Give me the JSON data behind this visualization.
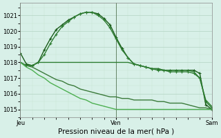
{
  "title": "Pression niveau de la mer( hPa )",
  "bg_color": "#cce8d8",
  "plot_bg_color": "#d8f0e8",
  "grid_color_major": "#b8d8c8",
  "grid_color_minor": "#c8e4d4",
  "ylim": [
    1014.5,
    1021.8
  ],
  "yticks": [
    1015,
    1016,
    1017,
    1018,
    1019,
    1020,
    1021
  ],
  "xtick_labels": [
    "Jeu",
    "Ven",
    "Sam"
  ],
  "xtick_positions": [
    0,
    16,
    32
  ],
  "series": [
    {
      "y": [
        1018.6,
        1017.9,
        1017.8,
        1018.0,
        1018.8,
        1019.5,
        1020.1,
        1020.4,
        1020.7,
        1020.9,
        1021.1,
        1021.2,
        1021.2,
        1021.1,
        1020.8,
        1020.4,
        1019.6,
        1018.9,
        1018.3,
        1017.9,
        1017.8,
        1017.7,
        1017.6,
        1017.6,
        1017.5,
        1017.5,
        1017.5,
        1017.5,
        1017.5,
        1017.5,
        1017.3,
        1015.3,
        1015.0
      ],
      "color": "#1a5c1a",
      "lw": 1.0,
      "marker": "+",
      "ms": 3.5
    },
    {
      "y": [
        1018.0,
        1017.8,
        1017.8,
        1018.0,
        1018.5,
        1019.2,
        1019.8,
        1020.3,
        1020.6,
        1020.9,
        1021.1,
        1021.2,
        1021.2,
        1021.0,
        1020.7,
        1020.2,
        1019.5,
        1018.8,
        1018.3,
        1017.9,
        1017.8,
        1017.7,
        1017.6,
        1017.5,
        1017.5,
        1017.4,
        1017.4,
        1017.4,
        1017.4,
        1017.3,
        1017.0,
        1015.5,
        1015.1
      ],
      "color": "#2e7d32",
      "lw": 1.0,
      "marker": "+",
      "ms": 3.5
    },
    {
      "y": [
        1018.0,
        1017.8,
        1017.8,
        1018.0,
        1018.0,
        1018.0,
        1018.0,
        1018.0,
        1018.0,
        1018.0,
        1018.0,
        1018.0,
        1018.0,
        1018.0,
        1018.0,
        1018.0,
        1018.0,
        1018.0,
        1018.0,
        1017.9,
        1017.8,
        1017.7,
        1017.6,
        1017.6,
        1017.5,
        1017.5,
        1017.5,
        1017.5,
        1017.5,
        1017.4,
        1017.0,
        1015.6,
        1015.2
      ],
      "color": "#2e7d32",
      "lw": 1.0,
      "marker": null,
      "ms": 0
    },
    {
      "y": [
        1018.0,
        1017.8,
        1017.7,
        1017.5,
        1017.3,
        1017.1,
        1016.9,
        1016.8,
        1016.6,
        1016.5,
        1016.3,
        1016.2,
        1016.1,
        1016.0,
        1015.9,
        1015.8,
        1015.8,
        1015.7,
        1015.7,
        1015.6,
        1015.6,
        1015.6,
        1015.6,
        1015.5,
        1015.5,
        1015.4,
        1015.4,
        1015.4,
        1015.3,
        1015.2,
        1015.1,
        1015.1,
        1015.0
      ],
      "color": "#3a7a3a",
      "lw": 1.0,
      "marker": null,
      "ms": 0
    },
    {
      "y": [
        1018.0,
        1017.7,
        1017.5,
        1017.2,
        1017.0,
        1016.7,
        1016.5,
        1016.3,
        1016.1,
        1015.9,
        1015.7,
        1015.6,
        1015.4,
        1015.3,
        1015.2,
        1015.1,
        1015.0,
        1015.0,
        1015.0,
        1015.0,
        1015.0,
        1015.0,
        1015.0,
        1015.0,
        1015.0,
        1015.0,
        1015.0,
        1015.0,
        1015.0,
        1015.0,
        1015.0,
        1015.0,
        1015.0
      ],
      "color": "#4caf50",
      "lw": 1.0,
      "marker": null,
      "ms": 0
    }
  ],
  "vline_color": "#557755",
  "vline_lw": 0.6,
  "spine_color": "#888888",
  "tick_fontsize": 6,
  "xlabel_fontsize": 7.5
}
